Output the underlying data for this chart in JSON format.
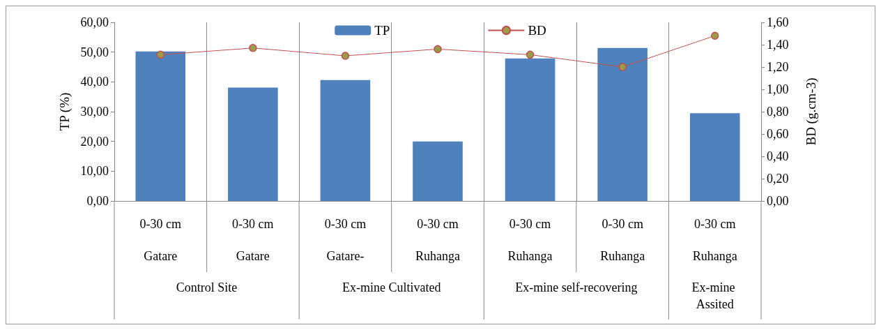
{
  "chart_data": {
    "type": "bar",
    "categories": [
      "0-30 cm",
      "0-30 cm",
      "0-30 cm",
      "0-30 cm",
      "0-30 cm",
      "0-30 cm",
      "0-30 cm"
    ],
    "series": [
      {
        "name": "TP",
        "color": "#4f81bd",
        "values": [
          50.2,
          38.1,
          40.6,
          20.0,
          47.9,
          51.4,
          29.5
        ]
      },
      {
        "name": "BD",
        "type": "line",
        "axis": "y2",
        "color": "#c0504d",
        "values": [
          1.31,
          1.37,
          1.3,
          1.36,
          1.31,
          1.2,
          1.48
        ]
      }
    ],
    "annotations": [
      "Gatare",
      "Gatare",
      "Gatare-",
      "Ruhanga",
      "Ruhanga",
      "Ruhanga",
      "Ruhanga",
      "Control Site",
      "Ex-mine Cultivated",
      "Ex-mine self-recovering",
      "Ex-mine Assited"
    ],
    "ylabel": "TP (%)",
    "y2label": "BD (g.cm-3)",
    "ylim": [
      0,
      60
    ],
    "yticks": [
      {
        "value": 0,
        "label": "0,00"
      },
      {
        "value": 10,
        "label": "10,00"
      },
      {
        "value": 20,
        "label": "20,00"
      },
      {
        "value": 30,
        "label": "30,00"
      },
      {
        "value": 40,
        "label": "40,00"
      },
      {
        "value": 50,
        "label": "50,00"
      },
      {
        "value": 60,
        "label": "60,00"
      }
    ],
    "y2lim": [
      0,
      1.6
    ],
    "y2ticks": [
      {
        "value": 0,
        "label": "0,00"
      },
      {
        "value": 0.2,
        "label": "0,20"
      },
      {
        "value": 0.4,
        "label": "0,40"
      },
      {
        "value": 0.6,
        "label": "0,60"
      },
      {
        "value": 0.8,
        "label": "0,80"
      },
      {
        "value": 1.0,
        "label": "1,00"
      },
      {
        "value": 1.2,
        "label": "1,20"
      },
      {
        "value": 1.4,
        "label": "1,40"
      },
      {
        "value": 1.6,
        "label": "1,60"
      }
    ],
    "grid": "x",
    "legend": "top",
    "marker": "circle",
    "line_style": "solid"
  }
}
